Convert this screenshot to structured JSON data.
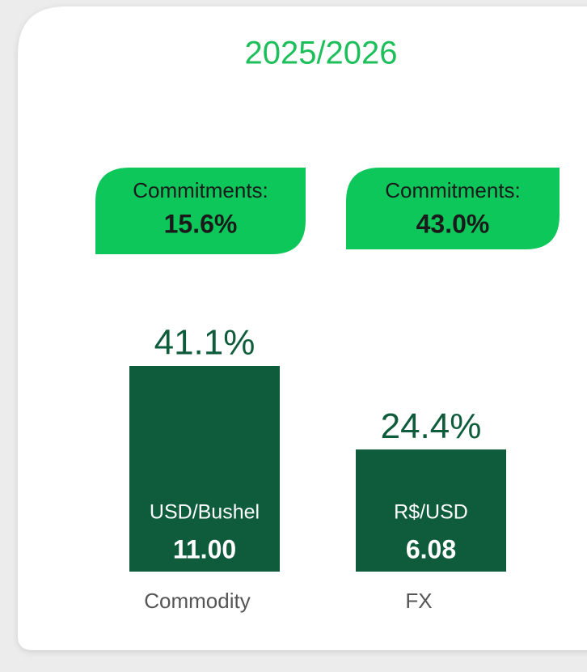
{
  "chart_data": {
    "type": "bar",
    "title": "2025/2026",
    "categories": [
      "Commodity",
      "FX"
    ],
    "values": [
      41.1,
      24.4
    ],
    "value_labels": [
      "41.1%",
      "24.4%"
    ],
    "color": "#0f5c3c",
    "commitments": [
      {
        "label": "Commitments:",
        "value": "15.6%"
      },
      {
        "label": "Commitments:",
        "value": "43.0%"
      }
    ],
    "bar_labels": [
      {
        "unit": "USD/Bushel",
        "price": "11.00"
      },
      {
        "unit": "R$/USD",
        "price": "6.08"
      }
    ]
  }
}
